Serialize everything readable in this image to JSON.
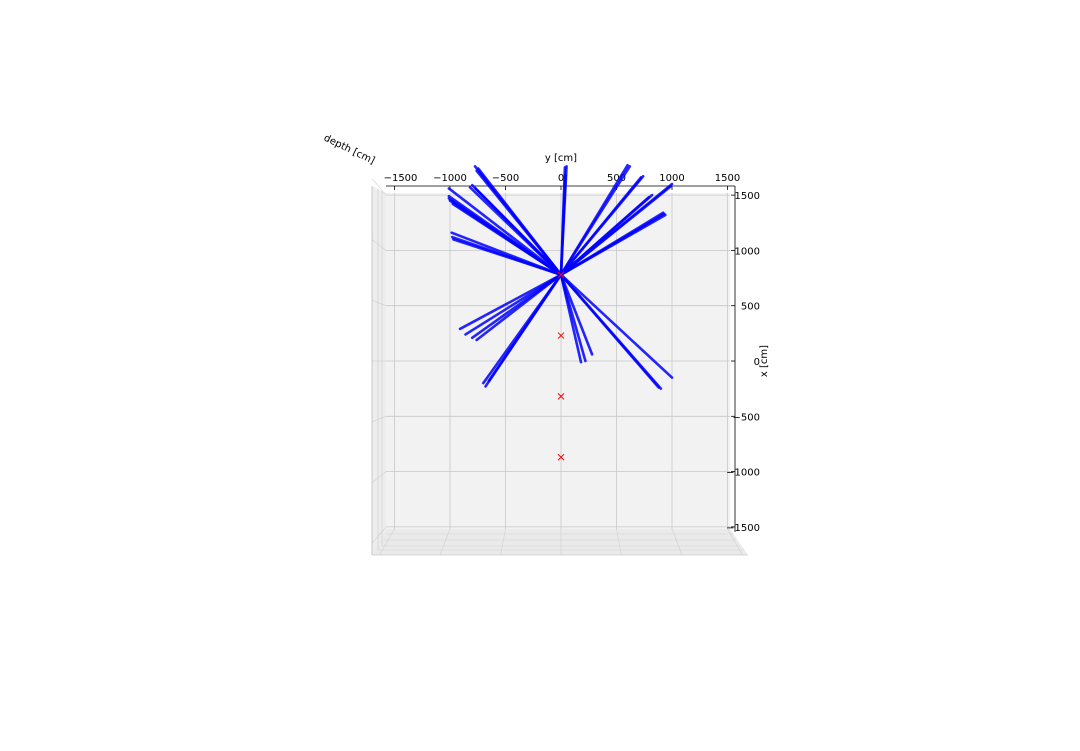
{
  "chart_data": {
    "type": "3d-line",
    "title": "",
    "xlabel": "y [cm]",
    "ylabel": "x [cm]",
    "zlabel": "depth [cm]",
    "xlim": [
      -1500,
      1500
    ],
    "ylim": [
      -1500,
      1500
    ],
    "x_ticks": [
      "−1500",
      "−1000",
      "−500",
      "0",
      "500",
      "1000",
      "1500"
    ],
    "y_ticks": [
      "1500",
      "1000",
      "500",
      "0",
      "−500",
      "−1000",
      "−1500"
    ],
    "grid": true,
    "origin": {
      "y": 0,
      "x": 780
    },
    "track_color": "#0000ff",
    "marker_color": "#ff0000",
    "tracks": [
      {
        "y": -775,
        "x": 1760
      },
      {
        "y": -760,
        "x": 1720
      },
      {
        "y": -745,
        "x": 1740
      },
      {
        "y": -820,
        "x": 1570
      },
      {
        "y": -800,
        "x": 1590
      },
      {
        "y": -770,
        "x": 1560
      },
      {
        "y": -1010,
        "x": 1560
      },
      {
        "y": -1010,
        "x": 1490
      },
      {
        "y": -1010,
        "x": 1470
      },
      {
        "y": -1000,
        "x": 1450
      },
      {
        "y": -975,
        "x": 1420
      },
      {
        "y": -985,
        "x": 1160
      },
      {
        "y": -980,
        "x": 1120
      },
      {
        "y": -970,
        "x": 1100
      },
      {
        "y": 35,
        "x": 1750
      },
      {
        "y": 50,
        "x": 1760
      },
      {
        "y": 40,
        "x": 1680
      },
      {
        "y": 600,
        "x": 1770
      },
      {
        "y": 620,
        "x": 1760
      },
      {
        "y": 720,
        "x": 1660
      },
      {
        "y": 740,
        "x": 1670
      },
      {
        "y": 1000,
        "x": 1600
      },
      {
        "y": 990,
        "x": 1580
      },
      {
        "y": 790,
        "x": 1480
      },
      {
        "y": 820,
        "x": 1500
      },
      {
        "y": 930,
        "x": 1330
      },
      {
        "y": 940,
        "x": 1320
      },
      {
        "y": 920,
        "x": 1340
      },
      {
        "y": -910,
        "x": 290
      },
      {
        "y": -860,
        "x": 240
      },
      {
        "y": -800,
        "x": 210
      },
      {
        "y": -760,
        "x": 190
      },
      {
        "y": -700,
        "x": -200
      },
      {
        "y": -650,
        "x": -180
      },
      {
        "y": -680,
        "x": -230
      },
      {
        "y": 180,
        "x": -10
      },
      {
        "y": 220,
        "x": 0
      },
      {
        "y": 280,
        "x": 60
      },
      {
        "y": 1000,
        "x": -150
      },
      {
        "y": 900,
        "x": -250
      },
      {
        "y": 880,
        "x": -240
      }
    ],
    "markers": [
      {
        "y": 0,
        "x": 780
      },
      {
        "y": 0,
        "x": 230
      },
      {
        "y": 0,
        "x": -320
      },
      {
        "y": 0,
        "x": -870
      }
    ]
  }
}
